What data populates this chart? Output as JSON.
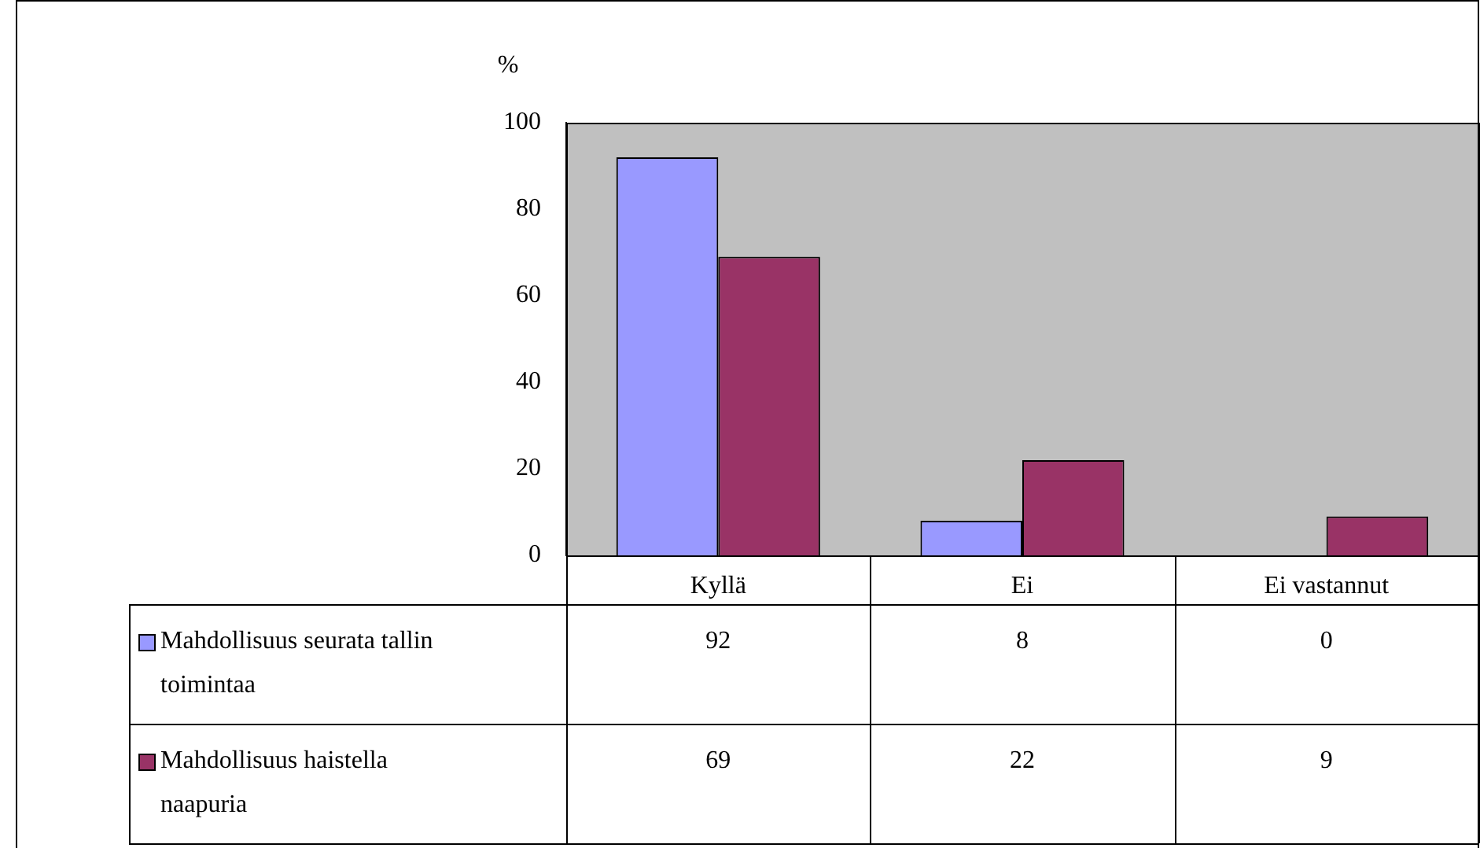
{
  "chart_data": {
    "type": "bar",
    "ylabel": "%",
    "categories": [
      "Kyllä",
      "Ei",
      "Ei vastannut"
    ],
    "series": [
      {
        "name": "Mahdollisuus seurata tallin toimintaa",
        "color": "#9999ff",
        "values": [
          92,
          8,
          0
        ]
      },
      {
        "name": "Mahdollisuus haistella naapuria",
        "color": "#993366",
        "values": [
          69,
          22,
          9
        ]
      }
    ],
    "ylim": [
      0,
      100
    ],
    "yticks": [
      0,
      20,
      40,
      60,
      80,
      100
    ],
    "grid": false,
    "legend": "bottom left",
    "data_labels": true
  }
}
